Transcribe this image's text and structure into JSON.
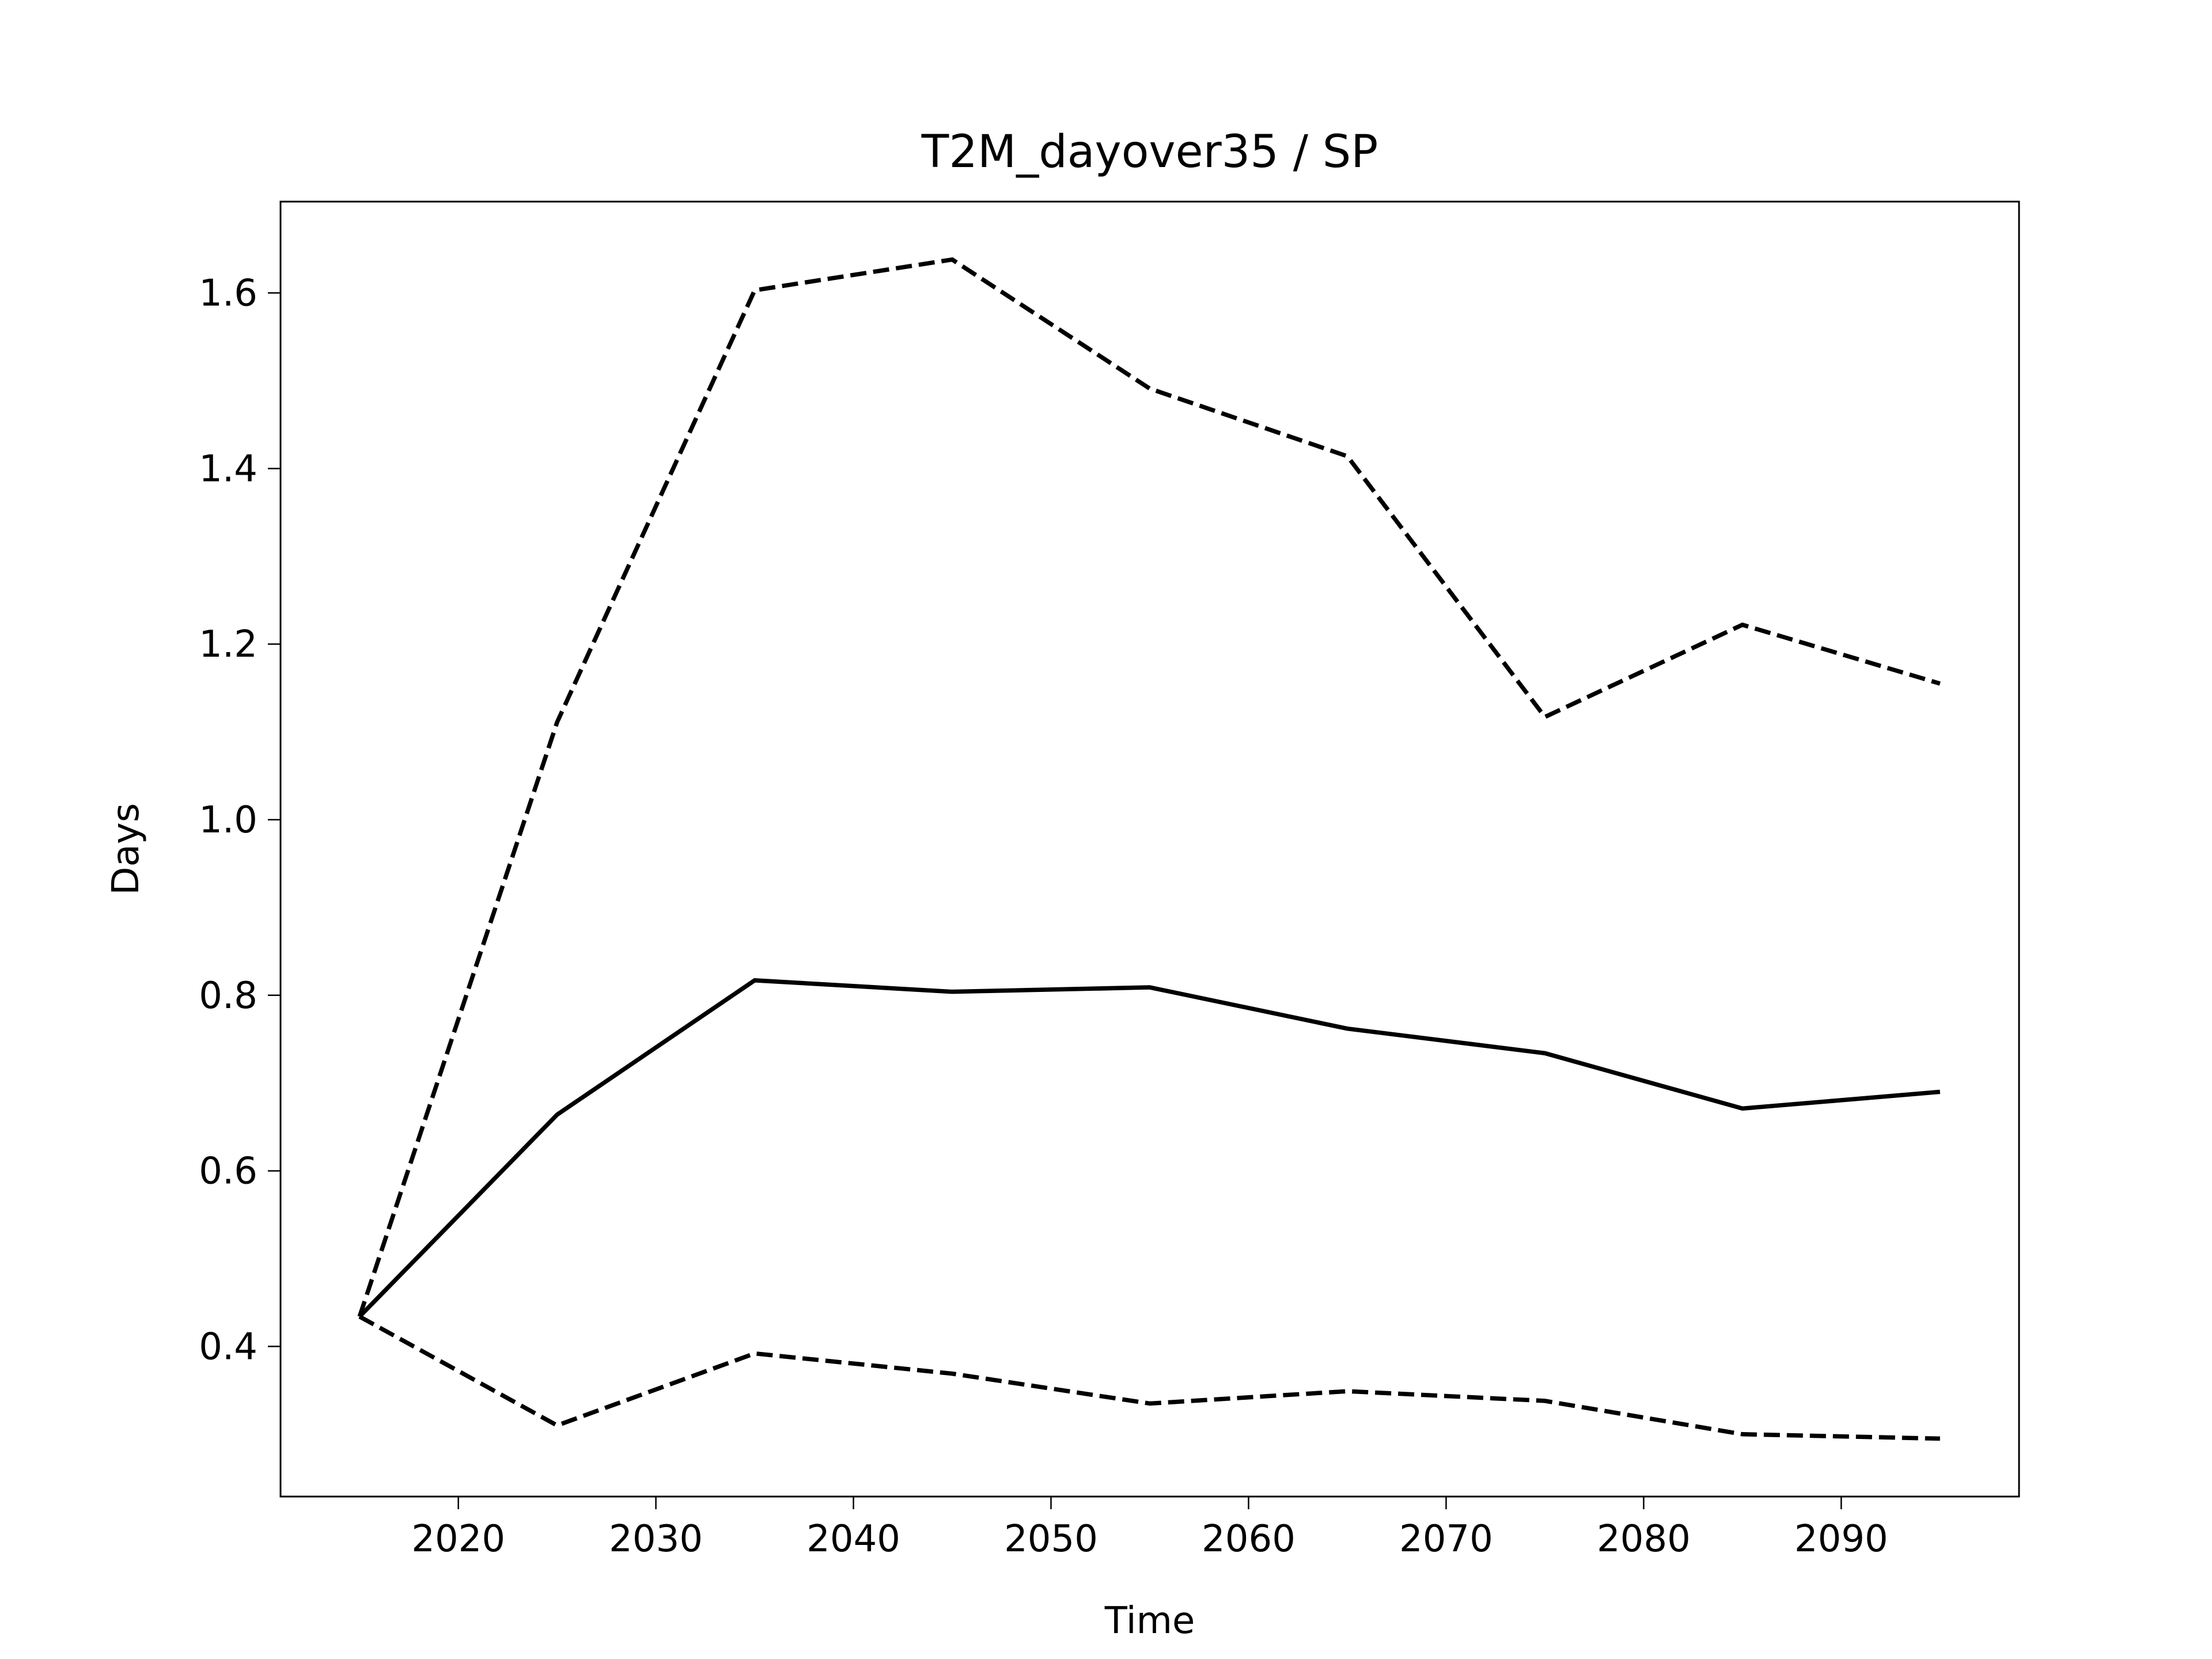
{
  "chart_data": {
    "type": "line",
    "title": "T2M_dayover35 / SP",
    "x_label": "Time",
    "y_label": "Days",
    "x": [
      2015,
      2025,
      2035,
      2045,
      2055,
      2065,
      2075,
      2085,
      2095
    ],
    "series": [
      {
        "color": "#000000",
        "dash": false,
        "values": [
          0.434,
          0.664,
          0.817,
          0.804,
          0.809,
          0.762,
          0.734,
          0.671,
          0.69
        ]
      },
      {
        "color": "#000000",
        "dash": true,
        "values": [
          0.434,
          1.111,
          1.603,
          1.638,
          1.491,
          1.414,
          1.117,
          1.222,
          1.155
        ]
      },
      {
        "color": "#000000",
        "dash": true,
        "values": [
          0.434,
          0.31,
          0.392,
          0.369,
          0.335,
          0.349,
          0.338,
          0.3,
          0.295
        ]
      }
    ],
    "xlim": [
      2011,
      2099
    ],
    "xticks": [
      2020,
      2030,
      2040,
      2050,
      2060,
      2070,
      2080,
      2090
    ],
    "ylim": [
      0.229,
      1.704
    ],
    "yticks": [
      {
        "value": 0.4,
        "label": "0.4"
      },
      {
        "value": 0.6,
        "label": "0.6"
      },
      {
        "value": 0.8,
        "label": "0.8"
      },
      {
        "value": 1.0,
        "label": "1.0"
      },
      {
        "value": 1.2,
        "label": "1.2"
      },
      {
        "value": 1.4,
        "label": "1.4"
      },
      {
        "value": 1.6,
        "label": "1.6"
      }
    ],
    "grid": false
  }
}
